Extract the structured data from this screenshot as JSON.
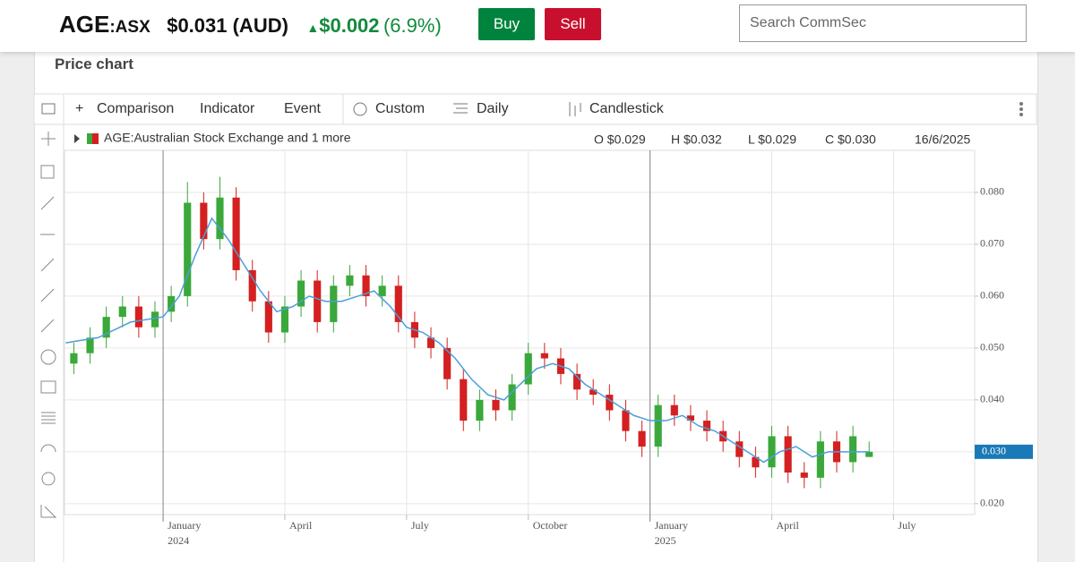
{
  "header": {
    "symbol": "AGE",
    "exchange": ":ASX",
    "price": "$0.031 (AUD)",
    "change": "$0.002",
    "change_pct": "(6.9%)",
    "buy": "Buy",
    "sell": "Sell",
    "search_placeholder": "Search CommSec"
  },
  "panel": {
    "title": "Price chart"
  },
  "toolbar": {
    "comparison": "Comparison",
    "indicator": "Indicator",
    "event": "Event",
    "custom": "Custom",
    "daily": "Daily",
    "candlestick": "Candlestick"
  },
  "chart_data": {
    "type": "candlestick",
    "legend": "AGE:Australian Stock Exchange and 1 more",
    "ohlc_readout": {
      "open": "O $0.029",
      "high": "H $0.032",
      "low": "L $0.029",
      "close": "C $0.030",
      "date": "16/6/2025"
    },
    "x": [
      -2.2,
      -1.8,
      -1.4,
      -1.0,
      -0.6,
      -0.2,
      0.2,
      0.6,
      1.0,
      1.4,
      1.8,
      2.2,
      2.6,
      3.0,
      3.4,
      3.8,
      4.2,
      4.6,
      5.0,
      5.4,
      5.8,
      6.2,
      6.6,
      7.0,
      7.4,
      7.8,
      8.2,
      8.6,
      9.0,
      9.4,
      9.8,
      10.2,
      10.6,
      11.0,
      11.4,
      11.8,
      12.2,
      12.6,
      13.0,
      13.4,
      13.8,
      14.2,
      14.6,
      15.0,
      15.4,
      15.8,
      16.2,
      16.6,
      17.0,
      17.4
    ],
    "open": [
      0.047,
      0.049,
      0.052,
      0.056,
      0.058,
      0.054,
      0.057,
      0.06,
      0.078,
      0.071,
      0.079,
      0.065,
      0.059,
      0.053,
      0.058,
      0.063,
      0.055,
      0.062,
      0.064,
      0.06,
      0.062,
      0.055,
      0.052,
      0.05,
      0.044,
      0.036,
      0.04,
      0.038,
      0.043,
      0.049,
      0.048,
      0.045,
      0.042,
      0.041,
      0.038,
      0.034,
      0.031,
      0.039,
      0.037,
      0.036,
      0.034,
      0.032,
      0.029,
      0.027,
      0.033,
      0.026,
      0.025,
      0.032,
      0.028,
      0.029
    ],
    "high": [
      0.051,
      0.054,
      0.058,
      0.06,
      0.06,
      0.059,
      0.062,
      0.082,
      0.08,
      0.083,
      0.081,
      0.067,
      0.061,
      0.06,
      0.065,
      0.065,
      0.064,
      0.066,
      0.066,
      0.064,
      0.064,
      0.057,
      0.054,
      0.052,
      0.046,
      0.042,
      0.042,
      0.045,
      0.051,
      0.051,
      0.05,
      0.047,
      0.044,
      0.043,
      0.04,
      0.036,
      0.041,
      0.041,
      0.039,
      0.038,
      0.036,
      0.034,
      0.031,
      0.035,
      0.035,
      0.028,
      0.034,
      0.034,
      0.035,
      0.032
    ],
    "low": [
      0.045,
      0.047,
      0.05,
      0.054,
      0.052,
      0.052,
      0.055,
      0.058,
      0.069,
      0.069,
      0.063,
      0.057,
      0.051,
      0.051,
      0.056,
      0.053,
      0.053,
      0.06,
      0.058,
      0.058,
      0.053,
      0.05,
      0.048,
      0.042,
      0.034,
      0.034,
      0.036,
      0.036,
      0.041,
      0.046,
      0.043,
      0.04,
      0.039,
      0.036,
      0.032,
      0.029,
      0.029,
      0.035,
      0.034,
      0.032,
      0.03,
      0.027,
      0.025,
      0.025,
      0.024,
      0.023,
      0.023,
      0.026,
      0.026,
      0.029
    ],
    "close": [
      0.049,
      0.052,
      0.056,
      0.058,
      0.054,
      0.057,
      0.06,
      0.078,
      0.071,
      0.079,
      0.065,
      0.059,
      0.053,
      0.058,
      0.063,
      0.055,
      0.062,
      0.064,
      0.06,
      0.062,
      0.055,
      0.052,
      0.05,
      0.044,
      0.036,
      0.04,
      0.038,
      0.043,
      0.049,
      0.048,
      0.045,
      0.042,
      0.041,
      0.038,
      0.034,
      0.031,
      0.039,
      0.037,
      0.036,
      0.034,
      0.032,
      0.029,
      0.027,
      0.033,
      0.026,
      0.025,
      0.032,
      0.028,
      0.033,
      0.03
    ],
    "up_color": "#3aa83a",
    "down_color": "#d42020",
    "moving_average": {
      "color": "#4a9fd8",
      "x": [
        -2.4,
        -1.6,
        -0.8,
        0,
        0.4,
        0.8,
        1.2,
        1.6,
        2.0,
        2.4,
        2.8,
        3.2,
        3.6,
        4.0,
        4.4,
        4.8,
        5.2,
        5.6,
        6.0,
        6.4,
        6.8,
        7.2,
        7.6,
        8.0,
        8.4,
        8.8,
        9.2,
        9.6,
        10.0,
        10.4,
        10.8,
        11.2,
        11.6,
        12.0,
        12.4,
        12.8,
        13.2,
        13.6,
        14.0,
        14.4,
        14.8,
        15.2,
        15.6,
        16.0,
        16.4,
        16.8,
        17.4
      ],
      "values": [
        0.051,
        0.052,
        0.055,
        0.056,
        0.06,
        0.068,
        0.075,
        0.071,
        0.066,
        0.061,
        0.057,
        0.058,
        0.06,
        0.059,
        0.059,
        0.06,
        0.061,
        0.058,
        0.054,
        0.053,
        0.051,
        0.048,
        0.044,
        0.041,
        0.04,
        0.043,
        0.046,
        0.047,
        0.046,
        0.043,
        0.041,
        0.039,
        0.037,
        0.036,
        0.036,
        0.037,
        0.035,
        0.034,
        0.032,
        0.03,
        0.028,
        0.03,
        0.031,
        0.029,
        0.03,
        0.03,
        0.03
      ]
    },
    "xlim": [
      -2.43,
      20.0
    ],
    "xticks": [
      {
        "value": 0,
        "label": "January"
      },
      {
        "value": 3,
        "label": "April"
      },
      {
        "value": 6,
        "label": "July"
      },
      {
        "value": 9,
        "label": "October"
      },
      {
        "value": 12,
        "label": "January"
      },
      {
        "value": 15,
        "label": "April"
      },
      {
        "value": 18,
        "label": "July"
      }
    ],
    "year_labels": [
      {
        "value": 0,
        "label": "2024"
      },
      {
        "value": 12,
        "label": "2025"
      }
    ],
    "ylim": [
      0.0179,
      0.0881
    ],
    "yticks": [
      {
        "value": 0.02,
        "label": "0.020"
      },
      {
        "value": 0.03,
        "label": "0.030"
      },
      {
        "value": 0.04,
        "label": "0.040"
      },
      {
        "value": 0.05,
        "label": "0.050"
      },
      {
        "value": 0.06,
        "label": "0.060"
      },
      {
        "value": 0.07,
        "label": "0.070"
      },
      {
        "value": 0.08,
        "label": "0.080"
      }
    ],
    "last_price": {
      "value": 0.03,
      "label": "0.030",
      "color": "#1a7ab8"
    },
    "grid": true
  }
}
